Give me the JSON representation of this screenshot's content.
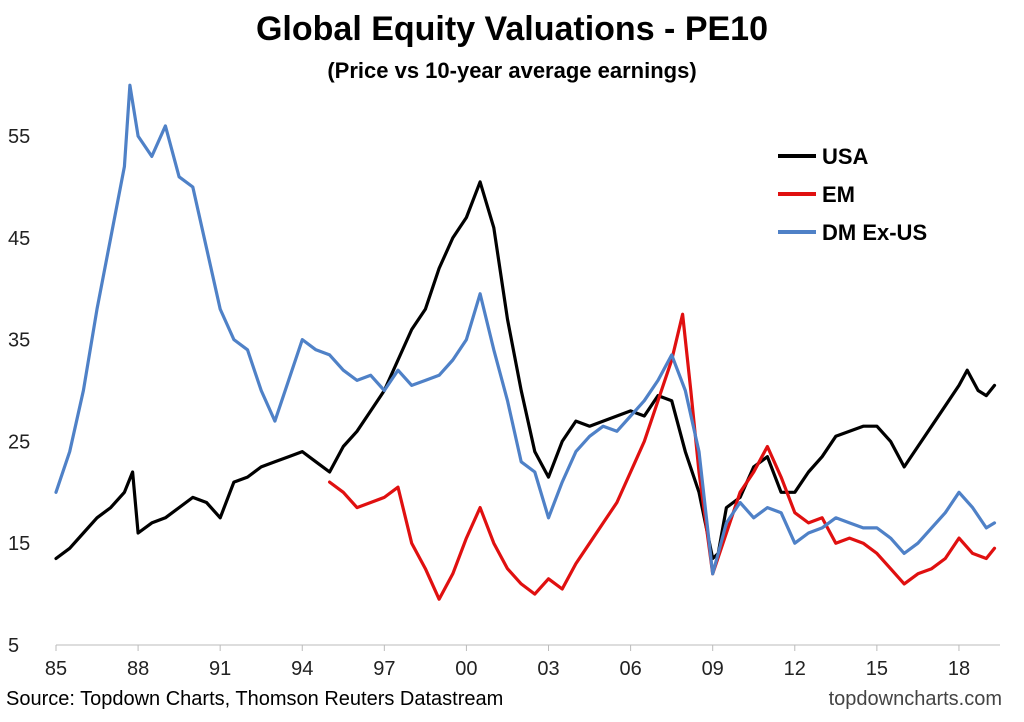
{
  "chart_data": {
    "type": "line",
    "title": "Global Equity Valuations - PE10",
    "subtitle": "(Price vs 10-year average earnings)",
    "xlabel": "",
    "ylabel": "",
    "x_ticks": [
      1985,
      1988,
      1991,
      1994,
      1997,
      2000,
      2003,
      2006,
      2009,
      2012,
      2015,
      2018
    ],
    "x_tick_labels": [
      "85",
      "88",
      "91",
      "94",
      "97",
      "00",
      "03",
      "06",
      "09",
      "12",
      "15",
      "18"
    ],
    "y_ticks": [
      5,
      15,
      25,
      35,
      45,
      55
    ],
    "y_tick_labels": [
      "5",
      "15",
      "25",
      "35",
      "45",
      "55"
    ],
    "xlim": [
      1985,
      2019.5
    ],
    "ylim": [
      5,
      61
    ],
    "grid": false,
    "legend_position": "top-right",
    "series": [
      {
        "name": "USA",
        "color": "#000000",
        "x": [
          1985.0,
          1985.5,
          1986.0,
          1986.5,
          1987.0,
          1987.5,
          1987.8,
          1988.0,
          1988.5,
          1989.0,
          1989.5,
          1990.0,
          1990.5,
          1991.0,
          1991.5,
          1992.0,
          1992.5,
          1993.0,
          1993.5,
          1994.0,
          1994.5,
          1995.0,
          1995.5,
          1996.0,
          1996.5,
          1997.0,
          1997.5,
          1998.0,
          1998.5,
          1999.0,
          1999.5,
          2000.0,
          2000.5,
          2001.0,
          2001.5,
          2002.0,
          2002.5,
          2003.0,
          2003.5,
          2004.0,
          2004.5,
          2005.0,
          2005.5,
          2006.0,
          2006.5,
          2007.0,
          2007.5,
          2008.0,
          2008.5,
          2009.0,
          2009.2,
          2009.5,
          2010.0,
          2010.5,
          2011.0,
          2011.5,
          2012.0,
          2012.5,
          2013.0,
          2013.5,
          2014.0,
          2014.5,
          2015.0,
          2015.5,
          2016.0,
          2016.5,
          2017.0,
          2017.5,
          2018.0,
          2018.3,
          2018.7,
          2019.0,
          2019.3
        ],
        "values": [
          13.5,
          14.5,
          16.0,
          17.5,
          18.5,
          20.0,
          22.0,
          16.0,
          17.0,
          17.5,
          18.5,
          19.5,
          19.0,
          17.5,
          21.0,
          21.5,
          22.5,
          23.0,
          23.5,
          24.0,
          23.0,
          22.0,
          24.5,
          26.0,
          28.0,
          30.0,
          33.0,
          36.0,
          38.0,
          42.0,
          45.0,
          47.0,
          50.5,
          46.0,
          37.0,
          30.0,
          24.0,
          21.5,
          25.0,
          27.0,
          26.5,
          27.0,
          27.5,
          28.0,
          27.5,
          29.5,
          29.0,
          24.0,
          20.0,
          13.5,
          14.0,
          18.5,
          19.5,
          22.5,
          23.5,
          20.0,
          20.0,
          22.0,
          23.5,
          25.5,
          26.0,
          26.5,
          26.5,
          25.0,
          22.5,
          24.5,
          26.5,
          28.5,
          30.5,
          32.0,
          30.0,
          29.5,
          30.5
        ]
      },
      {
        "name": "EM",
        "color": "#e01010",
        "x": [
          1995.0,
          1995.5,
          1996.0,
          1996.5,
          1997.0,
          1997.5,
          1998.0,
          1998.5,
          1999.0,
          1999.5,
          2000.0,
          2000.5,
          2001.0,
          2001.5,
          2002.0,
          2002.5,
          2003.0,
          2003.5,
          2004.0,
          2004.5,
          2005.0,
          2005.5,
          2006.0,
          2006.5,
          2007.0,
          2007.5,
          2007.9,
          2008.2,
          2008.5,
          2009.0,
          2009.5,
          2010.0,
          2010.5,
          2011.0,
          2011.5,
          2012.0,
          2012.5,
          2013.0,
          2013.5,
          2014.0,
          2014.5,
          2015.0,
          2015.5,
          2016.0,
          2016.5,
          2017.0,
          2017.5,
          2018.0,
          2018.5,
          2019.0,
          2019.3
        ],
        "values": [
          21.0,
          20.0,
          18.5,
          19.0,
          19.5,
          20.5,
          15.0,
          12.5,
          9.5,
          12.0,
          15.5,
          18.5,
          15.0,
          12.5,
          11.0,
          10.0,
          11.5,
          10.5,
          13.0,
          15.0,
          17.0,
          19.0,
          22.0,
          25.0,
          29.0,
          33.0,
          37.5,
          30.0,
          22.0,
          12.0,
          16.0,
          20.0,
          22.0,
          24.5,
          21.5,
          18.0,
          17.0,
          17.5,
          15.0,
          15.5,
          15.0,
          14.0,
          12.5,
          11.0,
          12.0,
          12.5,
          13.5,
          15.5,
          14.0,
          13.5,
          14.5
        ]
      },
      {
        "name": "DM Ex-US",
        "color": "#4f81c7",
        "x": [
          1985.0,
          1985.5,
          1986.0,
          1986.5,
          1987.0,
          1987.5,
          1987.7,
          1988.0,
          1988.5,
          1989.0,
          1989.5,
          1990.0,
          1990.5,
          1991.0,
          1991.5,
          1992.0,
          1992.5,
          1993.0,
          1993.5,
          1994.0,
          1994.5,
          1995.0,
          1995.5,
          1996.0,
          1996.5,
          1997.0,
          1997.5,
          1998.0,
          1998.5,
          1999.0,
          1999.5,
          2000.0,
          2000.5,
          2001.0,
          2001.5,
          2002.0,
          2002.5,
          2003.0,
          2003.5,
          2004.0,
          2004.5,
          2005.0,
          2005.5,
          2006.0,
          2006.5,
          2007.0,
          2007.5,
          2008.0,
          2008.5,
          2009.0,
          2009.5,
          2010.0,
          2010.5,
          2011.0,
          2011.5,
          2012.0,
          2012.5,
          2013.0,
          2013.5,
          2014.0,
          2014.5,
          2015.0,
          2015.5,
          2016.0,
          2016.5,
          2017.0,
          2017.5,
          2018.0,
          2018.5,
          2019.0,
          2019.3
        ],
        "values": [
          20.0,
          24.0,
          30.0,
          38.0,
          45.0,
          52.0,
          60.0,
          55.0,
          53.0,
          56.0,
          51.0,
          50.0,
          44.0,
          38.0,
          35.0,
          34.0,
          30.0,
          27.0,
          31.0,
          35.0,
          34.0,
          33.5,
          32.0,
          31.0,
          31.5,
          30.0,
          32.0,
          30.5,
          31.0,
          31.5,
          33.0,
          35.0,
          39.5,
          34.0,
          29.0,
          23.0,
          22.0,
          17.5,
          21.0,
          24.0,
          25.5,
          26.5,
          26.0,
          27.5,
          29.0,
          31.0,
          33.5,
          30.0,
          24.0,
          12.0,
          17.0,
          19.0,
          17.5,
          18.5,
          18.0,
          15.0,
          16.0,
          16.5,
          17.5,
          17.0,
          16.5,
          16.5,
          15.5,
          14.0,
          15.0,
          16.5,
          18.0,
          20.0,
          18.5,
          16.5,
          17.0
        ]
      }
    ]
  },
  "footer": {
    "source": "Source: Topdown Charts, Thomson Reuters Datastream",
    "site": "topdowncharts.com"
  }
}
